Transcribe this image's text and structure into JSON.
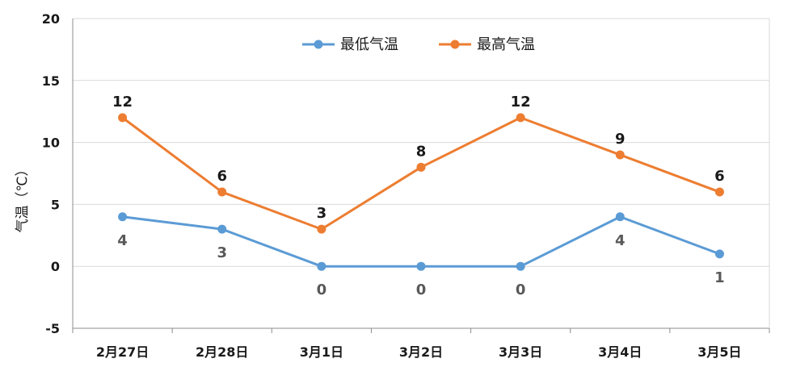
{
  "chart_data": {
    "type": "line",
    "categories": [
      "2月27日",
      "2月28日",
      "3月1日",
      "3月2日",
      "3月3日",
      "3月4日",
      "3月5日"
    ],
    "series": [
      {
        "name": "最低气温",
        "color": "#5b9bd5",
        "values": [
          4,
          3,
          0,
          0,
          0,
          4,
          1
        ],
        "labels": [
          "4",
          "3",
          "0",
          "0",
          "0",
          "4",
          "1"
        ]
      },
      {
        "name": "最高气温",
        "color": "#ed7d31",
        "values": [
          12,
          6,
          3,
          8,
          12,
          9,
          6
        ],
        "labels": [
          "12",
          "6",
          "3",
          "8",
          "12",
          "9",
          "6"
        ]
      }
    ],
    "ylabel": "气温（℃）",
    "ylim": [
      -5,
      20
    ],
    "yticks": [
      "-5",
      "0",
      "5",
      "10",
      "15",
      "20"
    ],
    "grid": true,
    "legend": "top-center"
  }
}
